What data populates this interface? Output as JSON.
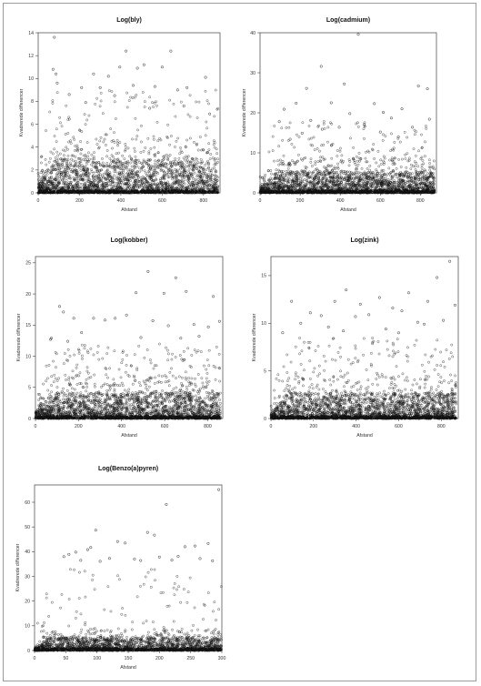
{
  "figure": {
    "panel_count": 5
  },
  "chart_data": [
    {
      "type": "scatter",
      "title": "Log(bly)",
      "xlabel": "Afstand",
      "ylabel": "Kvadrerede differencer",
      "xlim": [
        0,
        880
      ],
      "ylim": [
        0,
        14
      ],
      "xticks": [
        "0",
        "200",
        "400",
        "600",
        "800"
      ],
      "yticks": [
        "0",
        "2",
        "4",
        "6",
        "8",
        "10",
        "12",
        "14"
      ],
      "points": [
        [
          78,
          13.6
        ],
        [
          86,
          10.4
        ],
        [
          72,
          10.8
        ],
        [
          92,
          9.6
        ],
        [
          268,
          10.4
        ],
        [
          300,
          9.2
        ],
        [
          340,
          10.2
        ],
        [
          395,
          11.0
        ],
        [
          425,
          12.4
        ],
        [
          480,
          10.9
        ],
        [
          512,
          11.2
        ],
        [
          565,
          9.3
        ],
        [
          600,
          11.0
        ],
        [
          642,
          12.4
        ],
        [
          675,
          9.0
        ],
        [
          720,
          9.2
        ],
        [
          810,
          10.1
        ],
        [
          150,
          8.6
        ],
        [
          210,
          9.2
        ],
        [
          460,
          9.4
        ],
        [
          705,
          7.6
        ],
        [
          230,
          7.9
        ],
        [
          370,
          8.5
        ],
        [
          540,
          7.4
        ],
        [
          830,
          6.9
        ]
      ],
      "dense_cloud": {
        "x_range": [
          0,
          870
        ],
        "typical_max": 5.0,
        "sparse_max": 9.0,
        "points_approx": 2500
      },
      "grid": false,
      "legend": "none"
    },
    {
      "type": "scatter",
      "title": "Log(cadmium)",
      "xlabel": "Afstand",
      "ylabel": "Kvadrerede differencer",
      "xlim": [
        0,
        880
      ],
      "ylim": [
        0,
        40
      ],
      "xticks": [
        "0",
        "200",
        "400",
        "600",
        "800"
      ],
      "yticks": [
        "0",
        "10",
        "20",
        "30",
        "40"
      ],
      "points": [
        [
          490,
          39.6
        ],
        [
          305,
          31.6
        ],
        [
          232,
          26.1
        ],
        [
          420,
          27.2
        ],
        [
          790,
          26.7
        ],
        [
          835,
          26.0
        ],
        [
          120,
          20.9
        ],
        [
          180,
          22.4
        ],
        [
          355,
          22.5
        ],
        [
          570,
          22.3
        ],
        [
          615,
          20.1
        ],
        [
          708,
          21.0
        ],
        [
          448,
          19.8
        ],
        [
          253,
          18.1
        ],
        [
          655,
          18.7
        ],
        [
          96,
          17.8
        ],
        [
          845,
          18.4
        ],
        [
          520,
          17.1
        ],
        [
          760,
          16.4
        ],
        [
          310,
          15.9
        ],
        [
          395,
          16.4
        ],
        [
          600,
          15.2
        ],
        [
          210,
          14.9
        ],
        [
          690,
          14.0
        ],
        [
          150,
          13.4
        ]
      ],
      "dense_cloud": {
        "x_range": [
          0,
          870
        ],
        "typical_max": 9.0,
        "sparse_max": 18.0,
        "points_approx": 2500
      },
      "grid": false,
      "legend": "none"
    },
    {
      "type": "scatter",
      "title": "Log(kobber)",
      "xlabel": "Afstand",
      "ylabel": "Kvadrerede differencer",
      "xlim": [
        0,
        870
      ],
      "ylim": [
        0,
        26
      ],
      "xticks": [
        "0",
        "200",
        "400",
        "600",
        "800"
      ],
      "yticks": [
        "0",
        "5",
        "10",
        "15",
        "20",
        "25"
      ],
      "points": [
        [
          523,
          23.6
        ],
        [
          652,
          22.6
        ],
        [
          467,
          20.2
        ],
        [
          700,
          20.4
        ],
        [
          826,
          19.6
        ],
        [
          597,
          20.1
        ],
        [
          112,
          18.0
        ],
        [
          130,
          17.1
        ],
        [
          70,
          12.7
        ],
        [
          74,
          12.9
        ],
        [
          178,
          16.1
        ],
        [
          270,
          16.1
        ],
        [
          323,
          15.8
        ],
        [
          370,
          16.1
        ],
        [
          423,
          16.6
        ],
        [
          545,
          15.7
        ],
        [
          617,
          14.9
        ],
        [
          736,
          15.1
        ],
        [
          803,
          14.7
        ],
        [
          855,
          15.6
        ],
        [
          214,
          13.8
        ],
        [
          490,
          13.0
        ],
        [
          675,
          12.9
        ],
        [
          760,
          13.2
        ],
        [
          150,
          12.4
        ]
      ],
      "dense_cloud": {
        "x_range": [
          0,
          860
        ],
        "typical_max": 7.0,
        "sparse_max": 12.0,
        "points_approx": 2500
      },
      "grid": false,
      "legend": "none"
    },
    {
      "type": "scatter",
      "title": "Log(zink)",
      "xlabel": "Afstand",
      "ylabel": "Kvadrerede differencer",
      "xlim": [
        0,
        880
      ],
      "ylim": [
        0,
        17
      ],
      "xticks": [
        "0",
        "200",
        "400",
        "600",
        "800"
      ],
      "yticks": [
        "0",
        "5",
        "10",
        "15"
      ],
      "points": [
        [
          840,
          16.5
        ],
        [
          353,
          13.5
        ],
        [
          647,
          13.2
        ],
        [
          97,
          12.3
        ],
        [
          300,
          12.3
        ],
        [
          510,
          12.7
        ],
        [
          737,
          12.3
        ],
        [
          780,
          14.8
        ],
        [
          420,
          12.0
        ],
        [
          572,
          11.6
        ],
        [
          185,
          11.1
        ],
        [
          236,
          10.8
        ],
        [
          397,
          10.7
        ],
        [
          460,
          10.9
        ],
        [
          615,
          11.3
        ],
        [
          690,
          10.1
        ],
        [
          810,
          10.3
        ],
        [
          865,
          11.9
        ],
        [
          140,
          10.0
        ],
        [
          270,
          9.6
        ],
        [
          540,
          9.4
        ],
        [
          720,
          9.9
        ],
        [
          55,
          9.0
        ],
        [
          340,
          9.2
        ],
        [
          600,
          9.0
        ]
      ],
      "dense_cloud": {
        "x_range": [
          0,
          870
        ],
        "typical_max": 4.5,
        "sparse_max": 8.5,
        "points_approx": 2500
      },
      "grid": false,
      "legend": "none"
    },
    {
      "type": "scatter",
      "title": "Log(Benzo(a)pyren)",
      "xlabel": "Afstand",
      "ylabel": "Kvadrerede differencer",
      "xlim": [
        0,
        300
      ],
      "ylim": [
        0,
        67
      ],
      "xticks": [
        "0",
        "50",
        "100",
        "150",
        "200",
        "250",
        "300"
      ],
      "yticks": [
        "0",
        "10",
        "20",
        "30",
        "40",
        "50",
        "60"
      ],
      "points": [
        [
          295,
          65.1
        ],
        [
          211,
          59.1
        ],
        [
          98,
          48.7
        ],
        [
          192,
          46.7
        ],
        [
          181,
          47.8
        ],
        [
          257,
          42.3
        ],
        [
          241,
          42.0
        ],
        [
          278,
          43.3
        ],
        [
          133,
          44.1
        ],
        [
          145,
          43.5
        ],
        [
          66,
          39.8
        ],
        [
          85,
          40.8
        ],
        [
          90,
          41.7
        ],
        [
          47,
          38.0
        ],
        [
          55,
          38.9
        ],
        [
          230,
          38.1
        ],
        [
          120,
          37.3
        ],
        [
          160,
          37.0
        ],
        [
          200,
          37.8
        ],
        [
          265,
          37.2
        ],
        [
          74,
          36.5
        ],
        [
          105,
          36.1
        ],
        [
          170,
          36.4
        ],
        [
          220,
          36.6
        ],
        [
          285,
          36.3
        ]
      ],
      "dense_cloud": {
        "x_range": [
          0,
          300
        ],
        "typical_max": 9.0,
        "sparse_max": 33.0,
        "points_approx": 2000
      },
      "grid": false,
      "legend": "none"
    }
  ]
}
